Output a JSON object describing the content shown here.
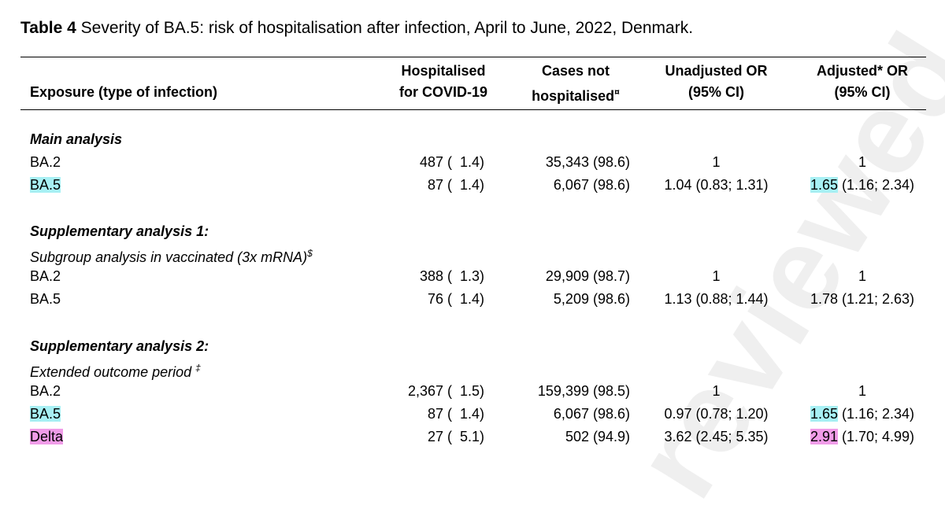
{
  "caption": {
    "label": "Table 4",
    "text": " Severity of BA.5: risk of hospitalisation after infection, April to June, 2022, Denmark."
  },
  "watermark": "reviewed",
  "headers": {
    "exposure": "Exposure (type of infection)",
    "hosp_line1": "Hospitalised",
    "hosp_line2": "for COVID-19",
    "cases_line1": "Cases not",
    "cases_line2": "hospitalised",
    "cases_sup": "¤",
    "unadj_line1": "Unadjusted OR",
    "unadj_line2": "(95% CI)",
    "adj_line1": "Adjusted* OR",
    "adj_line2": "(95% CI)"
  },
  "sections": [
    {
      "title": "Main analysis",
      "rows": [
        {
          "label": "BA.2",
          "hosp": "487 (  1.4)",
          "cases": "35,343 (98.6)",
          "unadj": "1",
          "adj_hl": "",
          "adj_rest": "1"
        },
        {
          "label": "BA.5",
          "hosp": "87 (  1.4)",
          "cases": "6,067 (98.6)",
          "unadj": "1.04 (0.83; 1.31)",
          "adj_hl": "1.65",
          "adj_rest": " (1.16; 2.34)"
        }
      ]
    },
    {
      "title": "Supplementary analysis 1:",
      "subtitle": "Subgroup analysis in vaccinated (3x mRNA)",
      "subtitle_sup": "$",
      "rows": [
        {
          "label": "BA.2",
          "hosp": "388 (  1.3)",
          "cases": "29,909 (98.7)",
          "unadj": "1",
          "adj_hl": "",
          "adj_rest": "1"
        },
        {
          "label": "BA.5",
          "hosp": "76 (  1.4)",
          "cases": "5,209 (98.6)",
          "unadj": "1.13 (0.88; 1.44)",
          "adj_hl": "",
          "adj_rest": "1.78 (1.21; 2.63)"
        }
      ]
    },
    {
      "title": "Supplementary analysis 2:",
      "subtitle": "Extended outcome period ",
      "subtitle_sup": "‡",
      "rows": [
        {
          "label": "BA.2",
          "hosp": "2,367 (  1.5)",
          "cases": "159,399 (98.5)",
          "unadj": "1",
          "adj_hl": "",
          "adj_rest": "1"
        },
        {
          "label": "BA.5",
          "hosp": "87 (  1.4)",
          "cases": "6,067 (98.6)",
          "unadj": "0.97 (0.78; 1.20)",
          "adj_hl": "1.65",
          "adj_rest": " (1.16; 2.34)"
        },
        {
          "label": "Delta",
          "hosp": "27 (  5.1)",
          "cases": "502 (94.9)",
          "unadj": "3.62 (2.45; 5.35)",
          "adj_hl": "2.91",
          "adj_rest": " (1.70; 4.99)"
        }
      ]
    }
  ],
  "highlight_colors": {
    "cyan": "#a7f0f4",
    "pink": "#f09ce8"
  }
}
